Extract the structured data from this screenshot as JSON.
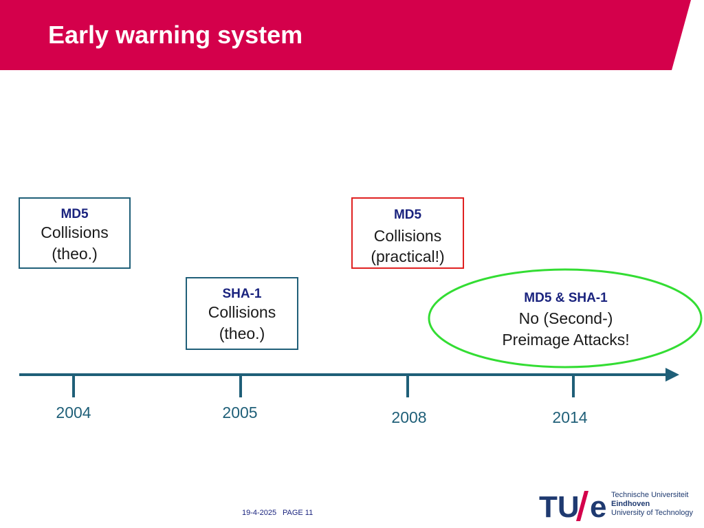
{
  "header": {
    "title": "Early warning system",
    "band_color": "#d4004b"
  },
  "boxes": {
    "md5_theo": {
      "heading": "MD5",
      "line1": "Collisions",
      "line2": "(theo.)"
    },
    "sha1_theo": {
      "heading": "SHA-1",
      "line1": "Collisions",
      "line2": "(theo.)"
    },
    "md5_practical": {
      "heading": "MD5",
      "line1": "Collisions",
      "line2": "(practical!)"
    },
    "md5_sha1_ellipse": {
      "heading": "MD5 & SHA-1",
      "line1": "No (Second-)",
      "line2": "Preimage Attacks!"
    }
  },
  "timeline": {
    "years": [
      "2004",
      "2005",
      "2008",
      "2014"
    ],
    "line_color": "#1f5f78"
  },
  "footer": {
    "date": "19-4-2025",
    "page": "PAGE 11"
  },
  "logo": {
    "line1": "Technische Universiteit",
    "line2": "Eindhoven",
    "line3": "University of Technology"
  },
  "colors": {
    "ellipse_border": "#33dd33",
    "practical_border": "#e02020"
  }
}
